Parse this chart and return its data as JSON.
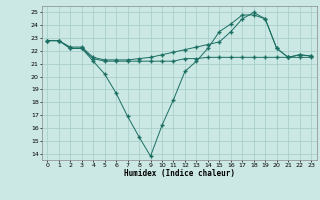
{
  "xlabel": "Humidex (Indice chaleur)",
  "bg_color": "#cce8e4",
  "grid_color": "#aacfcb",
  "line_color": "#1a6e62",
  "line1_x": [
    0,
    1,
    2,
    3,
    4,
    5,
    6,
    7,
    8,
    9,
    10,
    11,
    12,
    13,
    14,
    15,
    16,
    17,
    18,
    19,
    20,
    21,
    22,
    23
  ],
  "line1_y": [
    22.8,
    22.8,
    22.2,
    22.2,
    21.4,
    21.2,
    21.2,
    21.2,
    21.2,
    21.2,
    21.2,
    21.2,
    21.4,
    21.4,
    21.5,
    21.5,
    21.5,
    21.5,
    21.5,
    21.5,
    21.5,
    21.5,
    21.5,
    21.5
  ],
  "line2_x": [
    0,
    1,
    2,
    3,
    4,
    5,
    6,
    7,
    8,
    9,
    10,
    11,
    12,
    13,
    14,
    15,
    16,
    17,
    18,
    19,
    20,
    21,
    22,
    23
  ],
  "line2_y": [
    22.8,
    22.8,
    22.2,
    22.2,
    21.2,
    20.2,
    18.7,
    16.9,
    15.3,
    13.8,
    16.2,
    18.2,
    20.4,
    21.2,
    22.2,
    23.5,
    24.1,
    24.8,
    24.8,
    24.5,
    22.2,
    21.5,
    21.7,
    21.6
  ],
  "line3_x": [
    0,
    1,
    2,
    3,
    4,
    5,
    6,
    7,
    8,
    9,
    10,
    11,
    12,
    13,
    14,
    15,
    16,
    17,
    18,
    19,
    20,
    21,
    22,
    23
  ],
  "line3_y": [
    22.8,
    22.8,
    22.3,
    22.3,
    21.5,
    21.3,
    21.3,
    21.3,
    21.4,
    21.5,
    21.7,
    21.9,
    22.1,
    22.3,
    22.5,
    22.7,
    23.5,
    24.5,
    25.0,
    24.5,
    22.2,
    21.5,
    21.7,
    21.6
  ],
  "xlim": [
    -0.5,
    23.5
  ],
  "ylim": [
    13.5,
    25.5
  ],
  "yticks": [
    14,
    15,
    16,
    17,
    18,
    19,
    20,
    21,
    22,
    23,
    24,
    25
  ],
  "xticks": [
    0,
    1,
    2,
    3,
    4,
    5,
    6,
    7,
    8,
    9,
    10,
    11,
    12,
    13,
    14,
    15,
    16,
    17,
    18,
    19,
    20,
    21,
    22,
    23
  ]
}
